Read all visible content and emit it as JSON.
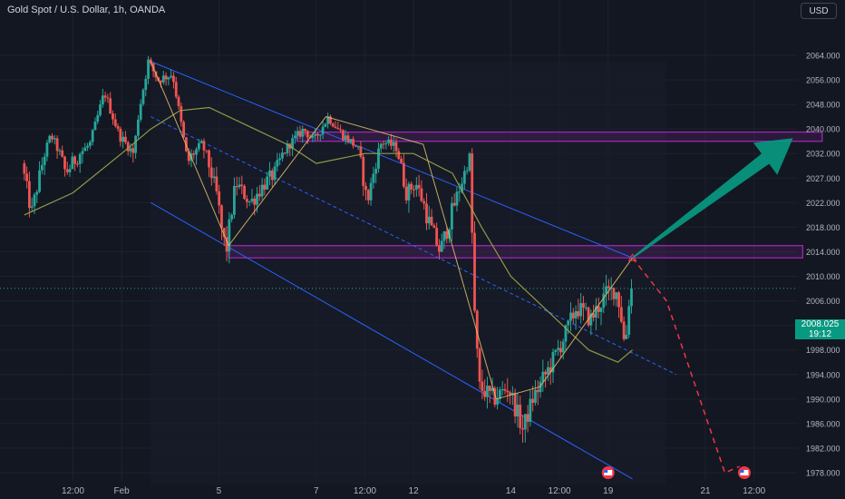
{
  "header": {
    "title": "Gold Spot / U.S. Dollar, 1h, OANDA",
    "currency_button": "USD"
  },
  "price_tag": {
    "price": "2008.025",
    "countdown": "19:12",
    "color": "#089981"
  },
  "colors": {
    "background": "#131722",
    "up": "#26a69a",
    "down": "#ef5350",
    "channel": "#2962ff",
    "zone": "#9c27b0",
    "zigzag": "#e6c36a",
    "ma": "#9ea84a",
    "arrow": "#089981",
    "projection": "#f23645"
  },
  "chart_data": {
    "type": "candlestick",
    "title": "Gold Spot / U.S. Dollar, 1h, OANDA",
    "currency": "USD",
    "y_ticks": [
      2064,
      2056,
      2048,
      2040,
      2032,
      2027,
      2022,
      2018,
      2014,
      2010,
      2006,
      2002,
      1998,
      1994,
      1990,
      1986,
      1982,
      1978
    ],
    "y_tick_labels": [
      "2064.000",
      "2056.000",
      "2048.000",
      "2040.000",
      "2032.000",
      "2027.000",
      "2022.000",
      "2018.000",
      "2014.000",
      "2010.000",
      "2006.000",
      "2002.000",
      "1998.000",
      "1994.000",
      "1990.000",
      "1986.000",
      "1982.000",
      "1978.000"
    ],
    "x_tick_labels": [
      {
        "label": "12:00",
        "t": 0.5
      },
      {
        "label": "Feb",
        "t": 1
      },
      {
        "label": "5",
        "t": 2
      },
      {
        "label": "7",
        "t": 3
      },
      {
        "label": "12:00",
        "t": 3.5
      },
      {
        "label": "12",
        "t": 4
      },
      {
        "label": "14",
        "t": 5
      },
      {
        "label": "12:00",
        "t": 5.5
      },
      {
        "label": "19",
        "t": 6
      },
      {
        "label": "21",
        "t": 7
      },
      {
        "label": "12:00",
        "t": 7.5
      }
    ],
    "current_price": 2008.025,
    "price_path": [
      [
        0.0,
        2030
      ],
      [
        0.1,
        2020
      ],
      [
        0.3,
        2038
      ],
      [
        0.45,
        2028
      ],
      [
        0.7,
        2035
      ],
      [
        0.85,
        2052
      ],
      [
        1.0,
        2038
      ],
      [
        1.15,
        2032
      ],
      [
        1.2,
        2045
      ],
      [
        1.3,
        2062
      ],
      [
        1.4,
        2056
      ],
      [
        1.55,
        2058
      ],
      [
        1.7,
        2030
      ],
      [
        1.85,
        2035
      ],
      [
        2.0,
        2024
      ],
      [
        2.05,
        2018
      ],
      [
        2.1,
        2014
      ],
      [
        2.2,
        2026
      ],
      [
        2.35,
        2022
      ],
      [
        2.5,
        2026
      ],
      [
        2.6,
        2028
      ],
      [
        2.75,
        2035
      ],
      [
        2.9,
        2040
      ],
      [
        3.0,
        2036
      ],
      [
        3.15,
        2044
      ],
      [
        3.3,
        2038
      ],
      [
        3.45,
        2034
      ],
      [
        3.55,
        2022
      ],
      [
        3.7,
        2036
      ],
      [
        3.85,
        2034
      ],
      [
        3.95,
        2024
      ],
      [
        4.05,
        2026
      ],
      [
        4.2,
        2018
      ],
      [
        4.3,
        2014
      ],
      [
        4.45,
        2022
      ],
      [
        4.55,
        2028
      ],
      [
        4.6,
        2032
      ],
      [
        4.65,
        2005
      ],
      [
        4.7,
        1992
      ],
      [
        4.85,
        1990
      ],
      [
        5.0,
        1992
      ],
      [
        5.15,
        1985
      ],
      [
        5.25,
        1990
      ],
      [
        5.45,
        1996
      ],
      [
        5.6,
        2001
      ],
      [
        5.7,
        2005
      ],
      [
        5.85,
        2003
      ],
      [
        6.0,
        2007
      ],
      [
        6.1,
        2008
      ],
      [
        6.15,
        2005
      ],
      [
        6.2,
        1998
      ],
      [
        6.25,
        2008.025
      ]
    ],
    "moving_average": [
      [
        0.0,
        2020
      ],
      [
        0.5,
        2024
      ],
      [
        1.0,
        2032
      ],
      [
        1.3,
        2040
      ],
      [
        1.6,
        2046
      ],
      [
        1.9,
        2047
      ],
      [
        2.3,
        2041
      ],
      [
        2.7,
        2035
      ],
      [
        3.0,
        2030
      ],
      [
        3.5,
        2032
      ],
      [
        4.0,
        2032
      ],
      [
        4.4,
        2028
      ],
      [
        4.7,
        2018
      ],
      [
        5.0,
        2010
      ],
      [
        5.4,
        2004
      ],
      [
        5.8,
        1998
      ],
      [
        6.1,
        1996
      ],
      [
        6.25,
        1998
      ]
    ],
    "zigzag": [
      [
        1.3,
        2066
      ],
      [
        2.1,
        2015
      ],
      [
        3.1,
        2044
      ],
      [
        4.1,
        2035
      ],
      [
        4.85,
        1990
      ],
      [
        5.3,
        1992
      ],
      [
        6.25,
        2013
      ]
    ],
    "channel": {
      "upper": [
        [
          1.3,
          2066
        ],
        [
          6.25,
          2013
        ]
      ],
      "lower": [
        [
          1.3,
          2022
        ],
        [
          6.25,
          1977
        ]
      ],
      "mid": [
        [
          1.3,
          2044
        ],
        [
          6.7,
          1994
        ]
      ]
    },
    "zones": [
      {
        "top": 2039,
        "bottom": 2036,
        "t_start": 2.8,
        "t_end": 8.2
      },
      {
        "top": 2015,
        "bottom": 2013,
        "t_start": 2.1,
        "t_end": 8.0
      }
    ],
    "arrow": {
      "from": [
        6.25,
        2013
      ],
      "to": [
        7.9,
        2037
      ]
    },
    "projection": [
      [
        6.25,
        2013
      ],
      [
        6.6,
        2006
      ],
      [
        7.2,
        1978
      ],
      [
        7.35,
        1979
      ]
    ],
    "event_markers": [
      6.0,
      7.4
    ],
    "ylim": [
      1976,
      2070
    ]
  }
}
